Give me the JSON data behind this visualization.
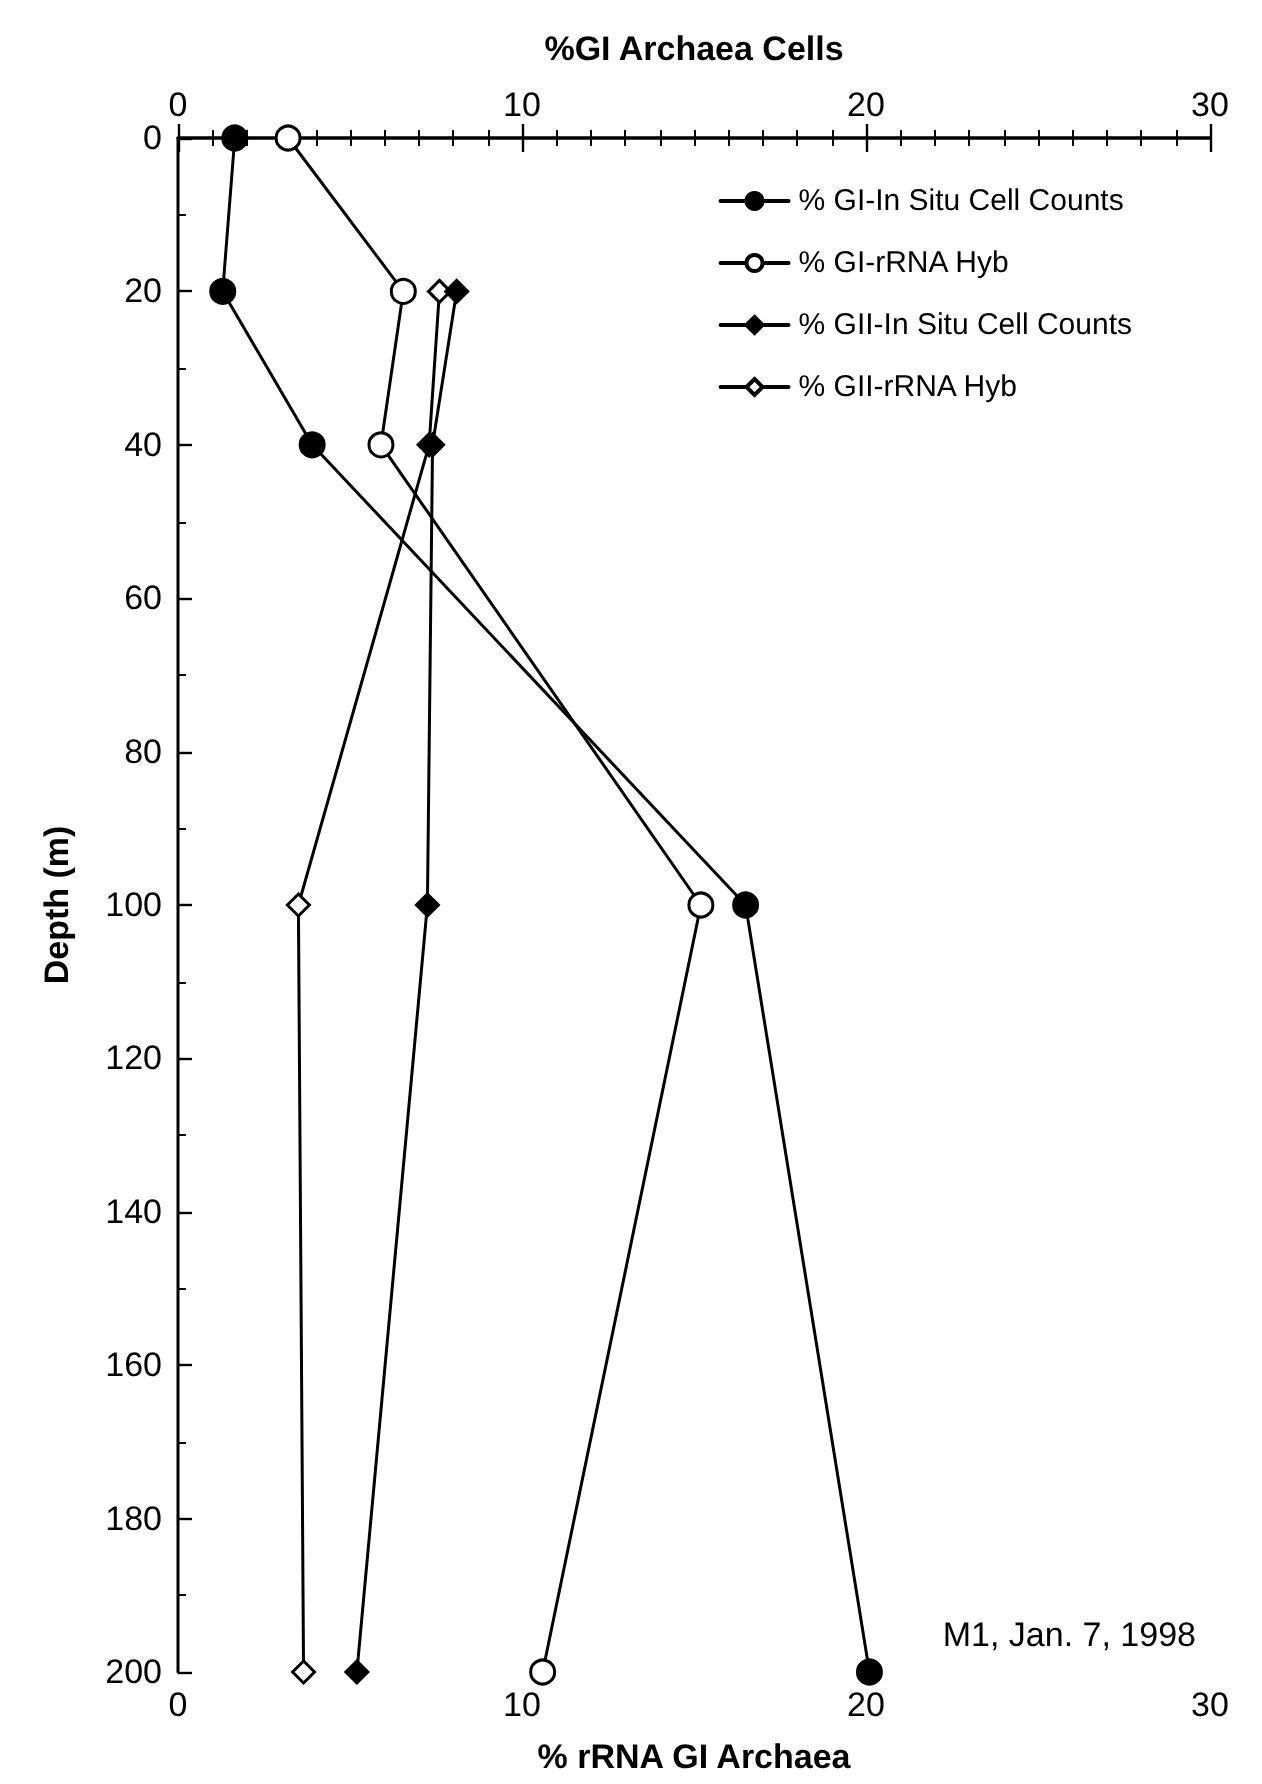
{
  "chart_data": {
    "type": "line",
    "xlabel": "% rRNA GI Archaea",
    "x2label": "%GI Archaea Cells",
    "ylabel": "Depth (m)",
    "xlim": [
      0,
      30
    ],
    "xticks": [
      0,
      10,
      20,
      30
    ],
    "x2lim": [
      0,
      30
    ],
    "x2ticks": [
      0,
      10,
      20,
      30
    ],
    "ylim": [
      200,
      0
    ],
    "yticks": [
      0,
      20,
      40,
      60,
      80,
      100,
      120,
      140,
      160,
      180,
      200
    ],
    "grid": false,
    "legend": "top right",
    "line_style": "solid",
    "annotations": [
      "M1, Jan. 7, 1998"
    ],
    "series": [
      {
        "name": "% GI-In Situ Cell Counts",
        "marker": "circle",
        "color": "#000000",
        "x": [
          1.65,
          1.3,
          3.9,
          16.5,
          20.1
        ],
        "values": [
          0,
          20,
          40,
          100,
          200
        ]
      },
      {
        "name": "% GI-rRNA Hyb",
        "marker": "circle",
        "color": "#ffffff",
        "x": [
          3.2,
          6.55,
          5.9,
          15.2,
          10.6
        ],
        "values": [
          0,
          20,
          40,
          100,
          200
        ]
      },
      {
        "name": "% GII-In Situ Cell Counts",
        "marker": "diamond",
        "color": "#000000",
        "x": [
          8.1,
          7.4,
          7.25,
          5.2
        ],
        "values": [
          20,
          40,
          100,
          200
        ]
      },
      {
        "name": "% GII-rRNA Hyb",
        "marker": "diamond",
        "color": "#ffffff",
        "x": [
          7.6,
          7.3,
          3.5,
          3.65
        ],
        "values": [
          20,
          40,
          100,
          200
        ]
      }
    ]
  }
}
